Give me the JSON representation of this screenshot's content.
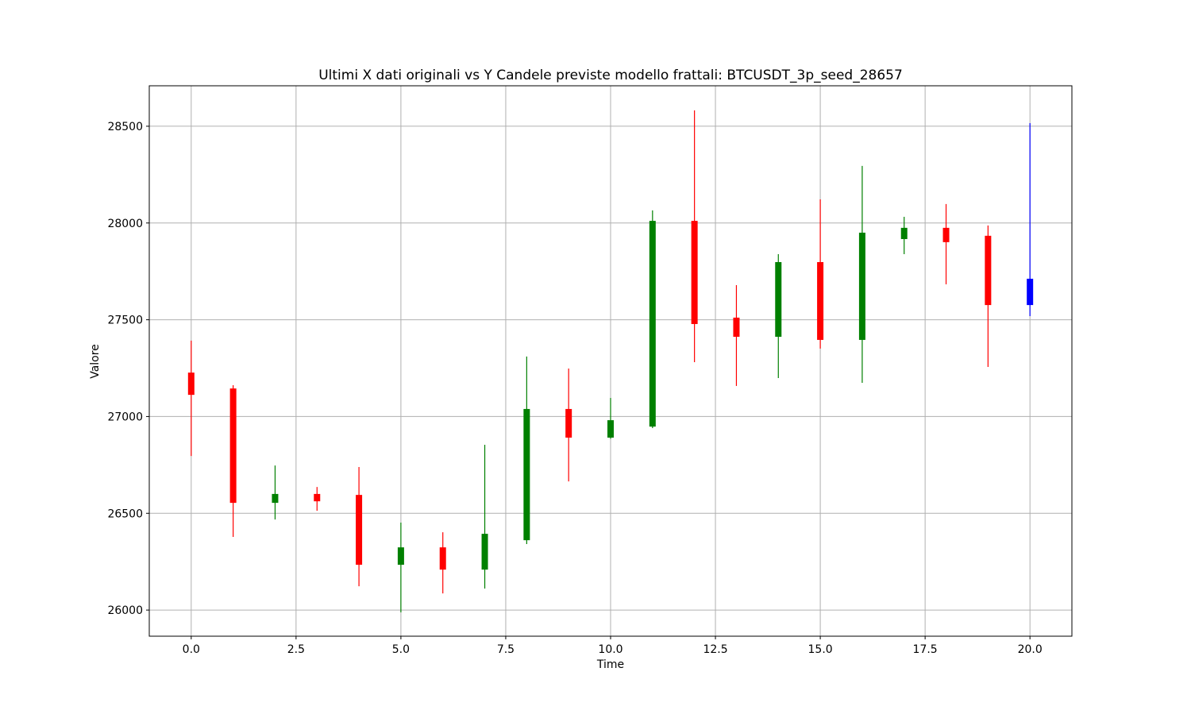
{
  "chart_data": {
    "type": "candlestick",
    "title": "Ultimi X dati originali vs Y Candele previste modello frattali: BTCUSDT_3p_seed_28657",
    "x_label": "Time",
    "y_label": "Valore",
    "x": [
      0,
      1,
      2,
      3,
      4,
      5,
      6,
      7,
      8,
      9,
      10,
      11,
      12,
      13,
      14,
      15,
      16,
      17,
      18,
      19,
      20
    ],
    "open": [
      27227,
      27145,
      26554,
      26600,
      26595,
      26234,
      26324,
      26209,
      26361,
      27039,
      26891,
      26948,
      28011,
      27511,
      27412,
      27798,
      27396,
      27917,
      27975,
      27934,
      27712
    ],
    "high": [
      27392,
      27162,
      26747,
      26636,
      26739,
      26452,
      26402,
      26854,
      27310,
      27248,
      27096,
      28065,
      28582,
      27679,
      27839,
      28122,
      28295,
      28032,
      28098,
      27987,
      28516
    ],
    "low": [
      26796,
      26378,
      26468,
      26513,
      26123,
      25988,
      26086,
      26111,
      26341,
      26665,
      26885,
      26940,
      27281,
      27158,
      27199,
      27351,
      27174,
      27839,
      27683,
      27256,
      27519
    ],
    "close": [
      27112,
      26554,
      26600,
      26562,
      26234,
      26324,
      26209,
      26394,
      27039,
      26891,
      26981,
      28011,
      27478,
      27412,
      27798,
      27396,
      27950,
      27975,
      27901,
      27576,
      27576
    ],
    "colors": [
      "red",
      "red",
      "green",
      "red",
      "red",
      "green",
      "red",
      "green",
      "green",
      "red",
      "green",
      "green",
      "red",
      "red",
      "green",
      "red",
      "green",
      "green",
      "red",
      "red",
      "blue"
    ],
    "xlim": [
      -1,
      21
    ],
    "ylim": [
      25865,
      28709
    ],
    "xticks": [
      {
        "value": 0,
        "label": "0.0"
      },
      {
        "value": 2.5,
        "label": "2.5"
      },
      {
        "value": 5,
        "label": "5.0"
      },
      {
        "value": 7.5,
        "label": "7.5"
      },
      {
        "value": 10,
        "label": "10.0"
      },
      {
        "value": 12.5,
        "label": "12.5"
      },
      {
        "value": 15,
        "label": "15.0"
      },
      {
        "value": 17.5,
        "label": "17.5"
      },
      {
        "value": 20,
        "label": "20.0"
      }
    ],
    "yticks": [
      26000,
      26500,
      27000,
      27500,
      28000,
      28500
    ],
    "grid": true
  }
}
